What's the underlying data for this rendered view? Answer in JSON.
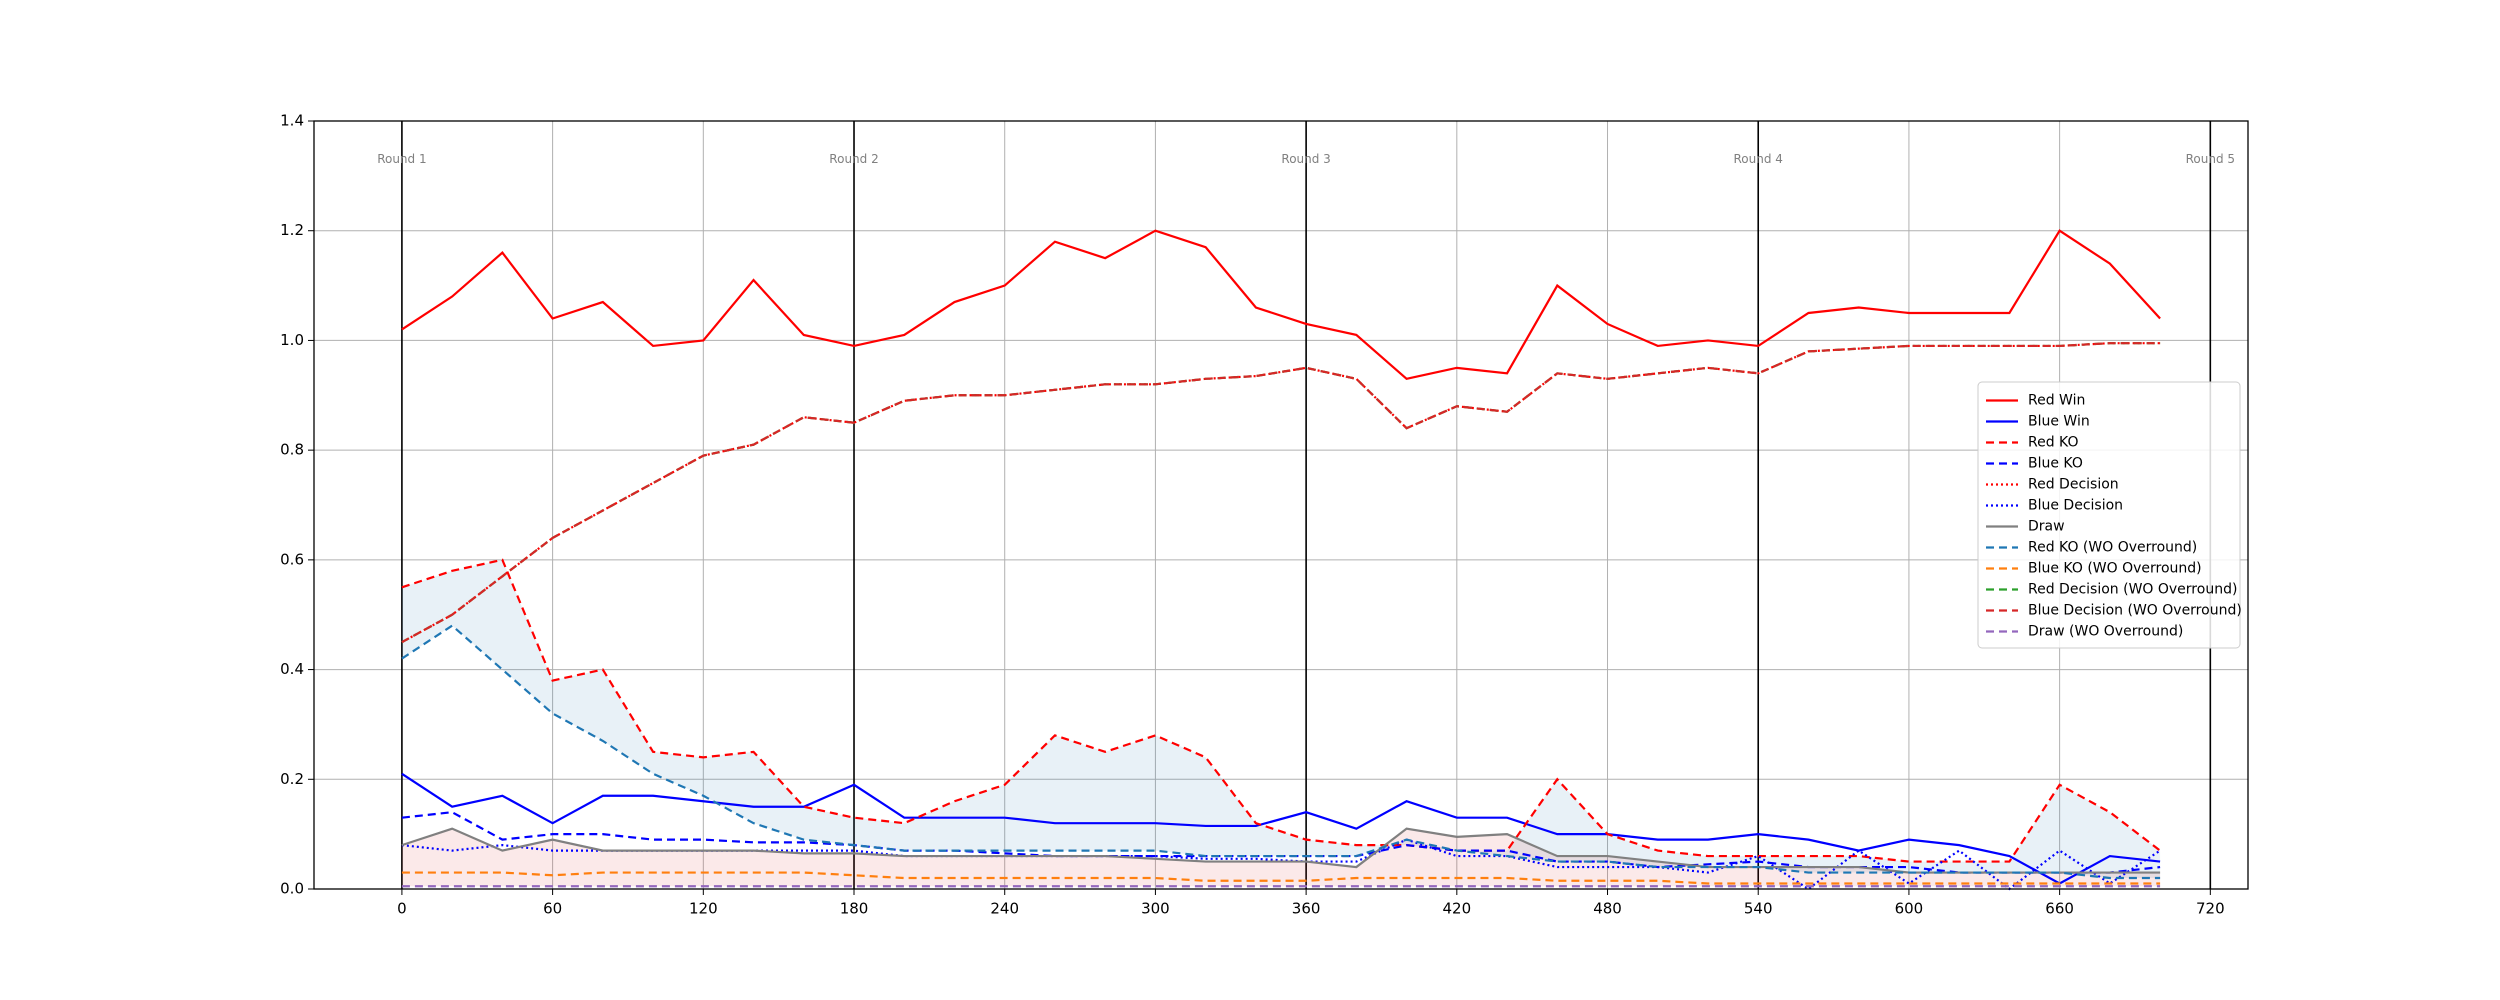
{
  "chart_data": {
    "type": "line",
    "x": [
      0,
      20,
      40,
      60,
      80,
      100,
      120,
      140,
      160,
      180,
      200,
      220,
      240,
      260,
      280,
      300,
      320,
      340,
      360,
      380,
      400,
      420,
      440,
      460,
      480,
      500,
      520,
      540,
      560,
      580,
      600,
      620,
      640,
      660,
      680,
      700
    ],
    "series": [
      {
        "name": "Red Win",
        "color": "#ff0000",
        "style": "solid",
        "values": [
          1.02,
          1.08,
          1.16,
          1.04,
          1.07,
          0.99,
          1.0,
          1.11,
          1.01,
          0.99,
          1.01,
          1.07,
          1.1,
          1.18,
          1.15,
          1.2,
          1.17,
          1.06,
          1.03,
          1.01,
          0.93,
          0.95,
          0.94,
          1.1,
          1.03,
          0.99,
          1.0,
          0.99,
          1.05,
          1.06,
          1.05,
          1.05,
          1.05,
          1.2,
          1.14,
          1.04
        ]
      },
      {
        "name": "Blue Win",
        "color": "#0000ff",
        "style": "solid",
        "values": [
          0.21,
          0.15,
          0.17,
          0.12,
          0.17,
          0.17,
          0.16,
          0.15,
          0.15,
          0.19,
          0.13,
          0.13,
          0.13,
          0.12,
          0.12,
          0.12,
          0.115,
          0.115,
          0.14,
          0.11,
          0.16,
          0.13,
          0.13,
          0.1,
          0.1,
          0.09,
          0.09,
          0.1,
          0.09,
          0.07,
          0.09,
          0.08,
          0.06,
          0.01,
          0.06,
          0.05
        ]
      },
      {
        "name": "Red KO",
        "color": "#ff0000",
        "style": "dashed",
        "values": [
          0.55,
          0.58,
          0.6,
          0.38,
          0.4,
          0.25,
          0.24,
          0.25,
          0.15,
          0.13,
          0.12,
          0.16,
          0.19,
          0.28,
          0.25,
          0.28,
          0.24,
          0.12,
          0.09,
          0.08,
          0.08,
          0.07,
          0.07,
          0.2,
          0.1,
          0.07,
          0.06,
          0.06,
          0.06,
          0.06,
          0.05,
          0.05,
          0.05,
          0.19,
          0.14,
          0.07
        ]
      },
      {
        "name": "Blue KO",
        "color": "#0000ff",
        "style": "dashed",
        "values": [
          0.13,
          0.14,
          0.09,
          0.1,
          0.1,
          0.09,
          0.09,
          0.085,
          0.085,
          0.08,
          0.07,
          0.07,
          0.065,
          0.06,
          0.06,
          0.06,
          0.06,
          0.06,
          0.06,
          0.06,
          0.08,
          0.07,
          0.07,
          0.05,
          0.05,
          0.04,
          0.045,
          0.05,
          0.04,
          0.04,
          0.04,
          0.03,
          0.03,
          0.03,
          0.03,
          0.04
        ]
      },
      {
        "name": "Red Decision",
        "color": "#ff0000",
        "style": "dotted",
        "values": [
          0.45,
          0.5,
          0.57,
          0.64,
          0.69,
          0.74,
          0.79,
          0.81,
          0.86,
          0.85,
          0.89,
          0.9,
          0.9,
          0.91,
          0.92,
          0.92,
          0.93,
          0.935,
          0.95,
          0.93,
          0.84,
          0.88,
          0.87,
          0.94,
          0.93,
          0.94,
          0.95,
          0.94,
          0.98,
          0.985,
          0.99,
          0.99,
          0.99,
          0.99,
          0.995,
          0.995
        ]
      },
      {
        "name": "Blue Decision",
        "color": "#0000ff",
        "style": "dotted",
        "values": [
          0.08,
          0.07,
          0.08,
          0.07,
          0.07,
          0.07,
          0.07,
          0.07,
          0.07,
          0.07,
          0.06,
          0.06,
          0.06,
          0.06,
          0.06,
          0.06,
          0.055,
          0.055,
          0.05,
          0.05,
          0.09,
          0.06,
          0.06,
          0.04,
          0.04,
          0.04,
          0.03,
          0.06,
          0.0,
          0.07,
          0.01,
          0.07,
          0.0,
          0.07,
          0.01,
          0.07
        ]
      },
      {
        "name": "Draw",
        "color": "#808080",
        "style": "solid",
        "values": [
          0.08,
          0.11,
          0.07,
          0.09,
          0.07,
          0.07,
          0.07,
          0.07,
          0.065,
          0.065,
          0.06,
          0.06,
          0.06,
          0.06,
          0.06,
          0.055,
          0.05,
          0.05,
          0.05,
          0.04,
          0.11,
          0.095,
          0.1,
          0.06,
          0.06,
          0.05,
          0.04,
          0.04,
          0.04,
          0.04,
          0.03,
          0.03,
          0.03,
          0.03,
          0.03,
          0.03
        ]
      },
      {
        "name": "Red KO (WO Overround)",
        "color": "#1f77b4",
        "style": "dashed",
        "values": [
          0.42,
          0.48,
          0.4,
          0.32,
          0.27,
          0.21,
          0.17,
          0.12,
          0.09,
          0.08,
          0.07,
          0.07,
          0.07,
          0.07,
          0.07,
          0.07,
          0.06,
          0.06,
          0.06,
          0.06,
          0.09,
          0.07,
          0.06,
          0.05,
          0.05,
          0.04,
          0.04,
          0.04,
          0.03,
          0.03,
          0.03,
          0.03,
          0.03,
          0.03,
          0.02,
          0.02
        ]
      },
      {
        "name": "Blue KO (WO Overround)",
        "color": "#ff7f0e",
        "style": "dashed",
        "values": [
          0.03,
          0.03,
          0.03,
          0.025,
          0.03,
          0.03,
          0.03,
          0.03,
          0.03,
          0.025,
          0.02,
          0.02,
          0.02,
          0.02,
          0.02,
          0.02,
          0.015,
          0.015,
          0.015,
          0.02,
          0.02,
          0.02,
          0.02,
          0.015,
          0.015,
          0.015,
          0.01,
          0.01,
          0.01,
          0.01,
          0.01,
          0.01,
          0.01,
          0.01,
          0.01,
          0.01
        ]
      },
      {
        "name": "Red Decision (WO Overround)",
        "color": "#2ca02c",
        "style": "dashed",
        "values": [
          0.45,
          0.5,
          0.57,
          0.64,
          0.69,
          0.74,
          0.79,
          0.81,
          0.86,
          0.85,
          0.89,
          0.9,
          0.9,
          0.91,
          0.92,
          0.92,
          0.93,
          0.935,
          0.95,
          0.93,
          0.84,
          0.88,
          0.87,
          0.94,
          0.93,
          0.94,
          0.95,
          0.94,
          0.98,
          0.985,
          0.99,
          0.99,
          0.99,
          0.99,
          0.995,
          0.995
        ]
      },
      {
        "name": "Blue Decision (WO Overround)",
        "color": "#d62728",
        "style": "dashed",
        "values": [
          0.45,
          0.5,
          0.57,
          0.64,
          0.69,
          0.74,
          0.79,
          0.81,
          0.86,
          0.85,
          0.89,
          0.9,
          0.9,
          0.91,
          0.92,
          0.92,
          0.93,
          0.935,
          0.95,
          0.93,
          0.84,
          0.88,
          0.87,
          0.94,
          0.93,
          0.94,
          0.95,
          0.94,
          0.98,
          0.985,
          0.99,
          0.99,
          0.99,
          0.99,
          0.995,
          0.995
        ]
      },
      {
        "name": "Draw (WO Overround)",
        "color": "#9467bd",
        "style": "dashed",
        "values": [
          0.005,
          0.005,
          0.005,
          0.005,
          0.005,
          0.005,
          0.005,
          0.005,
          0.005,
          0.005,
          0.005,
          0.005,
          0.005,
          0.005,
          0.005,
          0.005,
          0.005,
          0.005,
          0.005,
          0.005,
          0.005,
          0.005,
          0.005,
          0.005,
          0.005,
          0.005,
          0.005,
          0.005,
          0.005,
          0.005,
          0.005,
          0.005,
          0.005,
          0.005,
          0.005,
          0.005
        ]
      }
    ],
    "rounds": {
      "x": [
        0,
        180,
        360,
        540,
        720
      ],
      "labels": [
        "Round 1",
        "Round 2",
        "Round 3",
        "Round 4",
        "Round 5"
      ]
    },
    "xlim": [
      -35,
      735
    ],
    "ylim": [
      0,
      1.4
    ],
    "xticks": [
      0,
      60,
      120,
      180,
      240,
      300,
      360,
      420,
      480,
      540,
      600,
      660,
      720
    ],
    "yticks": [
      {
        "value": 0,
        "label": "0.0"
      },
      0.2,
      0.4,
      0.6,
      0.8,
      {
        "value": 1,
        "label": "1.0"
      },
      1.2,
      1.4
    ],
    "grid": true,
    "legend": "center right"
  }
}
